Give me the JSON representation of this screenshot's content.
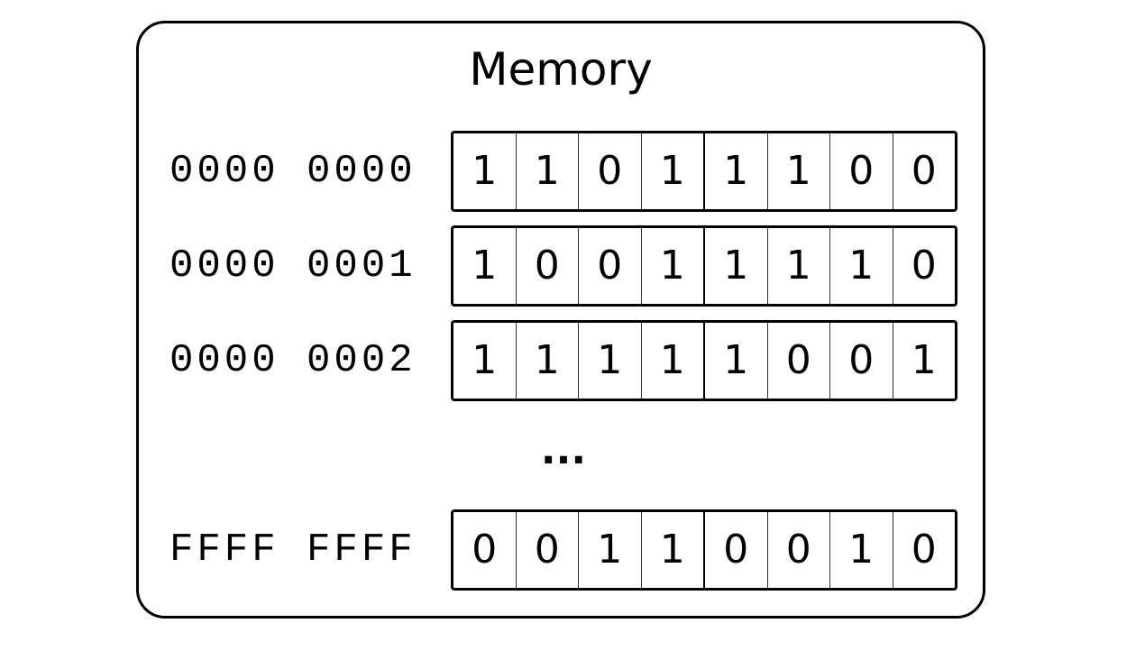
{
  "title": "Memory",
  "rows": [
    {
      "address": "0000 0000",
      "bits": [
        "1",
        "1",
        "0",
        "1",
        "1",
        "1",
        "0",
        "0"
      ]
    },
    {
      "address": "0000 0001",
      "bits": [
        "1",
        "0",
        "0",
        "1",
        "1",
        "1",
        "1",
        "0"
      ]
    },
    {
      "address": "0000 0002",
      "bits": [
        "1",
        "1",
        "1",
        "1",
        "1",
        "0",
        "0",
        "1"
      ]
    },
    {
      "address": "FFFF FFFF",
      "bits": [
        "0",
        "0",
        "1",
        "1",
        "0",
        "0",
        "1",
        "0"
      ]
    }
  ],
  "ellipsis": "..."
}
